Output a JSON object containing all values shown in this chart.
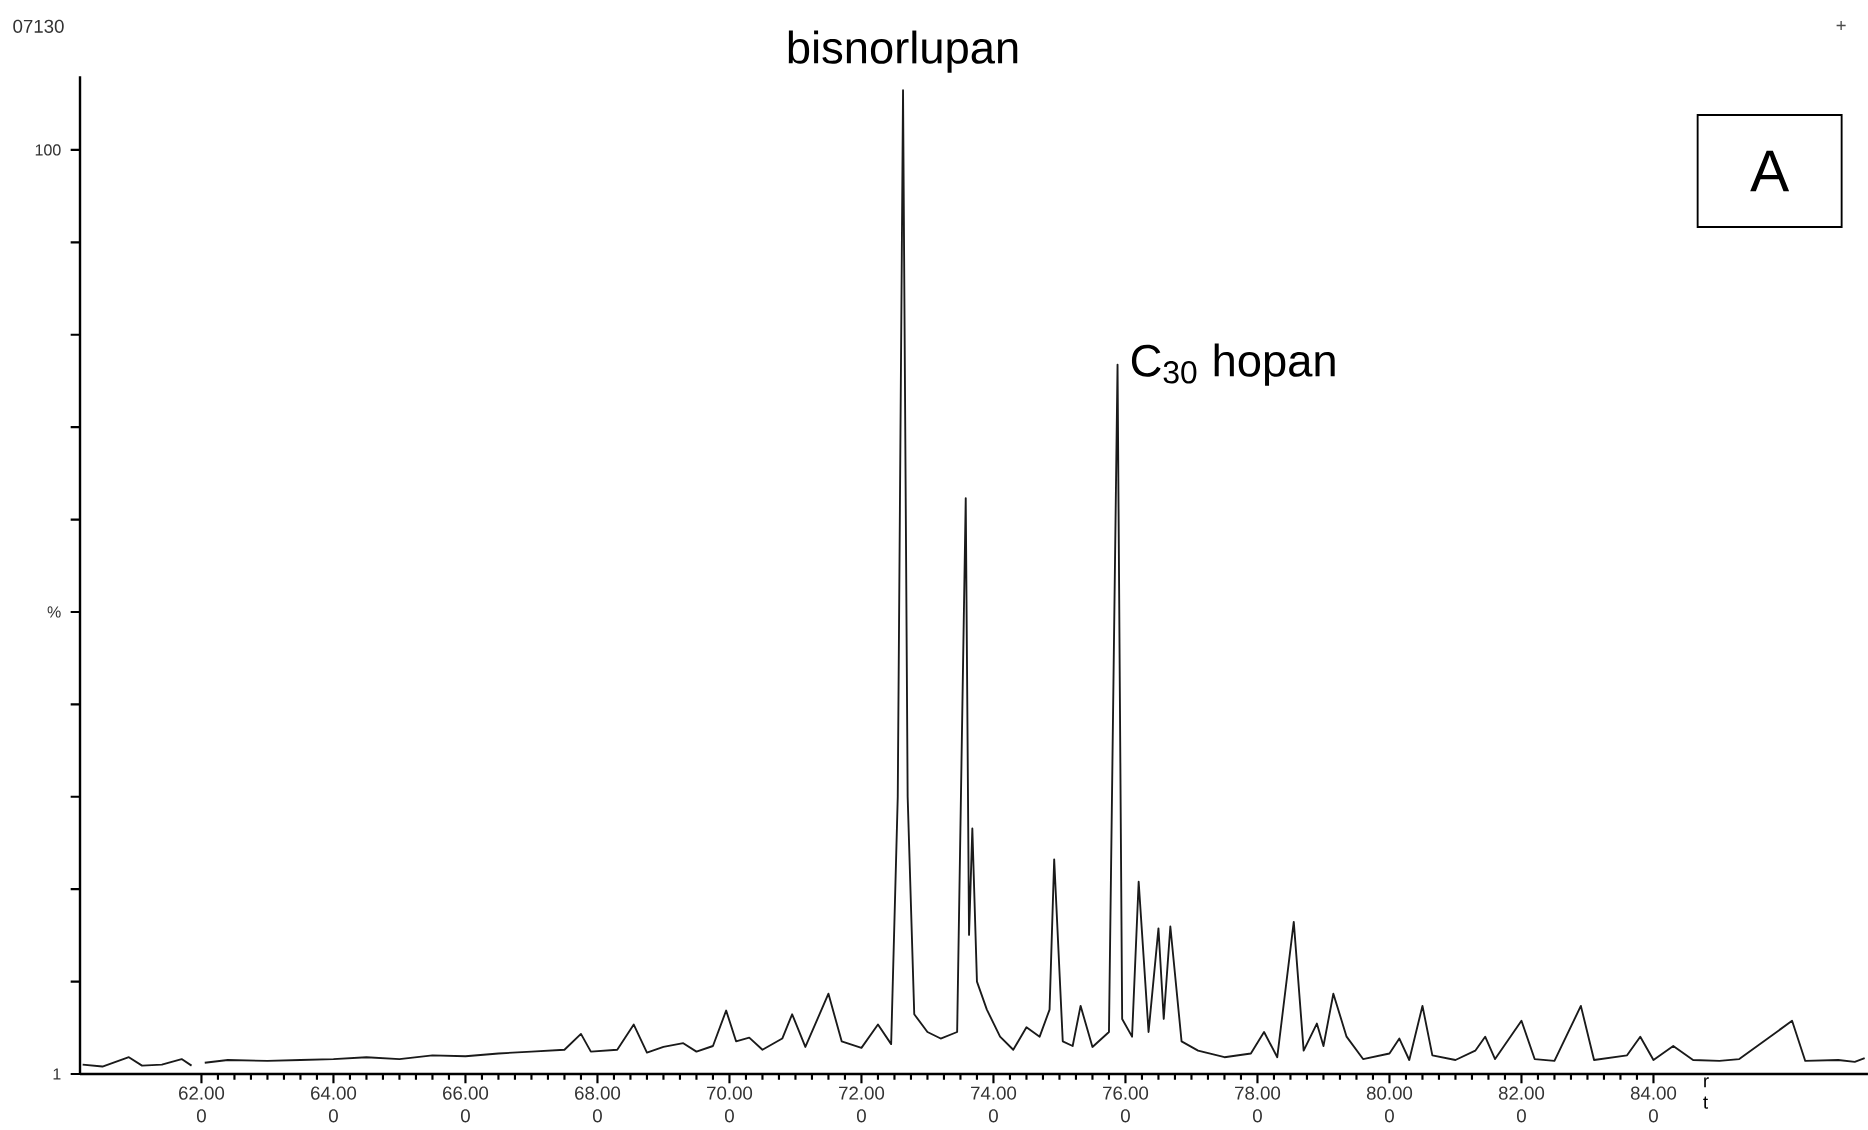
{
  "chart_data": {
    "type": "line",
    "x": [
      60.2,
      60.5,
      60.9,
      61.1,
      61.4,
      61.7,
      61.85,
      61.95,
      62.05,
      62.4,
      63.0,
      63.5,
      64.0,
      64.5,
      65.0,
      65.5,
      66.0,
      66.5,
      67.0,
      67.5,
      67.75,
      67.9,
      68.3,
      68.55,
      68.75,
      69.0,
      69.3,
      69.5,
      69.75,
      69.95,
      70.1,
      70.3,
      70.5,
      70.8,
      70.95,
      71.15,
      71.5,
      71.7,
      72.0,
      72.25,
      72.45,
      72.55,
      72.63,
      72.7,
      72.8,
      73.0,
      73.2,
      73.45,
      73.58,
      73.63,
      73.68,
      73.75,
      73.9,
      74.1,
      74.3,
      74.5,
      74.7,
      74.85,
      74.92,
      75.05,
      75.2,
      75.32,
      75.5,
      75.75,
      75.88,
      75.95,
      76.1,
      76.2,
      76.35,
      76.5,
      76.58,
      76.68,
      76.85,
      77.1,
      77.5,
      77.9,
      78.1,
      78.3,
      78.55,
      78.7,
      78.9,
      79.0,
      79.15,
      79.35,
      79.6,
      80.0,
      80.15,
      80.3,
      80.5,
      80.65,
      81.0,
      81.3,
      81.45,
      81.6,
      82.0,
      82.2,
      82.5,
      82.9,
      83.1,
      83.6,
      83.8,
      84.0,
      84.3,
      84.6,
      85.0,
      85.3,
      86.1,
      86.3,
      86.8,
      87.05,
      87.2
    ],
    "series": [
      {
        "color": "#1a1a1a",
        "values": [
          2.0,
          1.8,
          2.8,
          1.9,
          2.0,
          2.6,
          1.9,
          null,
          2.2,
          2.5,
          2.4,
          2.5,
          2.6,
          2.8,
          2.6,
          3.0,
          2.9,
          3.2,
          3.4,
          3.6,
          5.3,
          3.4,
          3.6,
          6.3,
          3.3,
          3.9,
          4.3,
          3.4,
          4.0,
          7.8,
          4.5,
          4.9,
          3.6,
          4.8,
          7.4,
          3.9,
          9.6,
          4.5,
          3.8,
          6.3,
          4.2,
          30.7,
          106.4,
          30.7,
          7.4,
          5.5,
          4.8,
          5.5,
          62.7,
          15.9,
          27.3,
          10.9,
          7.9,
          5.0,
          3.6,
          6.0,
          5.0,
          7.9,
          24.0,
          4.5,
          4.0,
          8.3,
          3.9,
          5.5,
          77.0,
          6.9,
          5.0,
          21.6,
          5.5,
          16.6,
          6.9,
          16.8,
          4.5,
          3.5,
          2.8,
          3.2,
          5.5,
          2.8,
          17.3,
          3.5,
          6.4,
          4.0,
          9.6,
          5.0,
          2.6,
          3.2,
          4.8,
          2.5,
          8.3,
          3.0,
          2.5,
          3.5,
          5.0,
          2.6,
          6.7,
          2.6,
          2.4,
          8.3,
          2.5,
          3.0,
          5.0,
          2.5,
          4.0,
          2.5,
          2.4,
          2.6,
          6.7,
          2.4,
          2.5,
          2.3,
          2.7
        ]
      }
    ],
    "xlabel": "r t",
    "xlim": [
      60.16,
      87.25
    ],
    "xticks": [
      {
        "value": 62,
        "label": "62.00"
      },
      {
        "value": 64,
        "label": "64.00"
      },
      {
        "value": 66,
        "label": "66.00"
      },
      {
        "value": 68,
        "label": "68.00"
      },
      {
        "value": 70,
        "label": "70.00"
      },
      {
        "value": 72,
        "label": "72.00"
      },
      {
        "value": 74,
        "label": "74.00"
      },
      {
        "value": 76,
        "label": "76.00"
      },
      {
        "value": 78,
        "label": "78.00"
      },
      {
        "value": 80,
        "label": "80.00"
      },
      {
        "value": 82,
        "label": "82.00"
      },
      {
        "value": 84,
        "label": "84.00"
      }
    ],
    "ylim": [
      1,
      107.9
    ],
    "yticks": [
      1,
      {
        "value": 10.9,
        "label": null
      },
      {
        "value": 20.8,
        "label": null
      },
      {
        "value": 30.7,
        "label": null
      },
      {
        "value": 40.6,
        "label": null
      },
      {
        "value": 50.5,
        "label": "%"
      },
      {
        "value": 60.4,
        "label": null
      },
      {
        "value": 70.3,
        "label": null
      },
      {
        "value": 80.2,
        "label": null
      },
      {
        "value": 90.1,
        "label": null
      },
      100
    ],
    "grid": false,
    "legend": false,
    "marker": "none",
    "line_style": "solid",
    "annotations": [
      {
        "text": "bisnorlupan",
        "x": 72.63,
        "y": 106.4
      },
      {
        "text": "C$_{30}$ hopan",
        "x": 75.88,
        "y": 77.0
      },
      "A",
      "07130",
      "+",
      "0",
      "0",
      "0",
      "0",
      "0",
      "0",
      "0",
      "0",
      "0",
      "0",
      "0",
      "0"
    ]
  }
}
